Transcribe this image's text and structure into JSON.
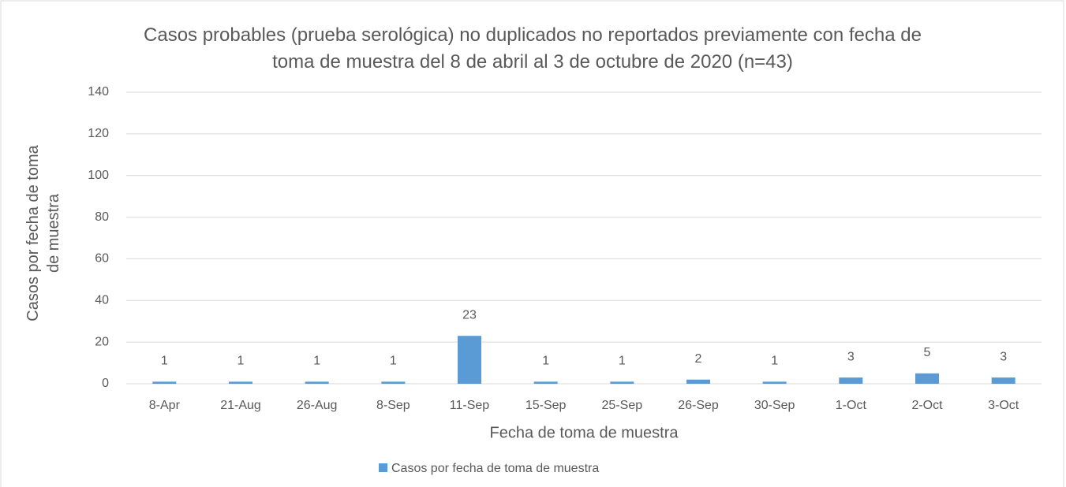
{
  "chart_data": {
    "type": "bar",
    "title": "Casos probables (prueba serológica) no duplicados no reportados previamente con fecha de toma de muestra del 8 de abril al 3 de octubre de 2020 (n=43)",
    "x_label": "Fecha de toma de muestra",
    "y_label": "Casos por fecha de toma de muestra",
    "categories": [
      "8-Apr",
      "21-Aug",
      "26-Aug",
      "8-Sep",
      "11-Sep",
      "15-Sep",
      "25-Sep",
      "26-Sep",
      "30-Sep",
      "1-Oct",
      "2-Oct",
      "3-Oct"
    ],
    "series": [
      {
        "name": "Casos por fecha de toma de muestra",
        "color": "#5b9bd5",
        "values": [
          1,
          1,
          1,
          1,
          23,
          1,
          1,
          2,
          1,
          3,
          5,
          3
        ]
      }
    ],
    "ylim": [
      0,
      140
    ],
    "yticks": [
      0,
      20,
      40,
      60,
      80,
      100,
      120,
      140
    ],
    "grid": true,
    "legend": "bottom"
  }
}
